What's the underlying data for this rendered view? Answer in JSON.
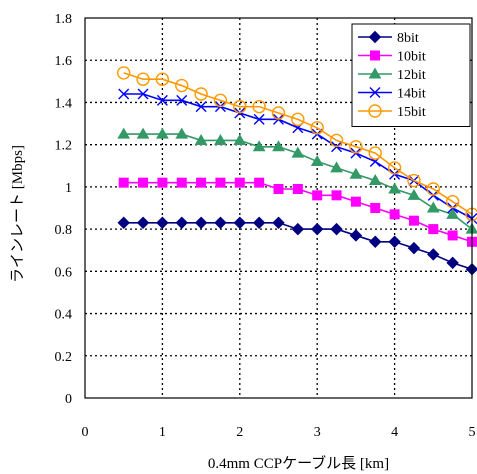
{
  "chart_data": {
    "type": "line",
    "xlabel": "0.4mm CCPケーブル長 [km]",
    "ylabel": "ラインレート [Mbps]",
    "xlim": [
      0,
      5
    ],
    "ylim": [
      0,
      1.8
    ],
    "x_ticks": [
      "0",
      "1",
      "2",
      "3",
      "4",
      "5"
    ],
    "y_ticks": [
      "0",
      "0.2",
      "0.4",
      "0.6",
      "0.8",
      "1",
      "1.2",
      "1.4",
      "1.6",
      "1.8"
    ],
    "grid": true,
    "legend_position": "top-right",
    "x": [
      0.5,
      0.75,
      1.0,
      1.25,
      1.5,
      1.75,
      2.0,
      2.25,
      2.5,
      2.75,
      3.0,
      3.25,
      3.5,
      3.75,
      4.0,
      4.25,
      4.5,
      4.75,
      5.0
    ],
    "series": [
      {
        "name": "8bit",
        "marker": "diamond",
        "color": "#000080",
        "values": [
          0.83,
          0.83,
          0.83,
          0.83,
          0.83,
          0.83,
          0.83,
          0.83,
          0.83,
          0.8,
          0.8,
          0.8,
          0.77,
          0.74,
          0.74,
          0.71,
          0.68,
          0.64,
          0.61
        ]
      },
      {
        "name": "10bit",
        "marker": "square",
        "color": "#ff00ff",
        "values": [
          1.02,
          1.02,
          1.02,
          1.02,
          1.02,
          1.02,
          1.02,
          1.02,
          0.99,
          0.99,
          0.96,
          0.96,
          0.93,
          0.9,
          0.87,
          0.84,
          0.8,
          0.77,
          0.74
        ]
      },
      {
        "name": "12bit",
        "marker": "triangle",
        "color": "#339966",
        "values": [
          1.25,
          1.25,
          1.25,
          1.25,
          1.22,
          1.22,
          1.22,
          1.19,
          1.19,
          1.16,
          1.12,
          1.09,
          1.06,
          1.03,
          0.99,
          0.96,
          0.9,
          0.87,
          0.8
        ]
      },
      {
        "name": "14bit",
        "marker": "x",
        "color": "#0000ff",
        "values": [
          1.44,
          1.44,
          1.41,
          1.41,
          1.38,
          1.38,
          1.35,
          1.32,
          1.32,
          1.28,
          1.25,
          1.19,
          1.16,
          1.12,
          1.06,
          1.03,
          0.96,
          0.9,
          0.85
        ]
      },
      {
        "name": "15bit",
        "marker": "circle",
        "color": "#ff9900",
        "values": [
          1.54,
          1.51,
          1.51,
          1.48,
          1.44,
          1.41,
          1.38,
          1.38,
          1.35,
          1.32,
          1.28,
          1.22,
          1.19,
          1.16,
          1.09,
          1.03,
          0.99,
          0.93,
          0.87
        ]
      }
    ]
  }
}
